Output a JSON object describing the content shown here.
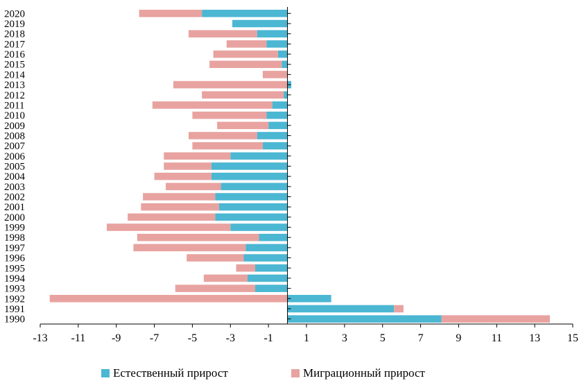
{
  "chart_data": {
    "type": "bar",
    "orientation": "horizontal",
    "stacked": true,
    "categories": [
      "1990",
      "1991",
      "1992",
      "1993",
      "1994",
      "1995",
      "1996",
      "1997",
      "1998",
      "1999",
      "2000",
      "2001",
      "2002",
      "2003",
      "2004",
      "2005",
      "2006",
      "2007",
      "2008",
      "2009",
      "2010",
      "2011",
      "2012",
      "2013",
      "2014",
      "2015",
      "2016",
      "2017",
      "2018",
      "2019",
      "2020"
    ],
    "series": [
      {
        "name": "Естественный прирост",
        "color": "#4bb7d3",
        "values": [
          8.1,
          5.6,
          2.3,
          -1.7,
          -2.1,
          -1.7,
          -2.3,
          -2.2,
          -1.5,
          -3.0,
          -3.8,
          -3.6,
          -3.8,
          -3.5,
          -4.0,
          -4.0,
          -3.0,
          -1.3,
          -1.6,
          -1.0,
          -1.1,
          -0.8,
          -0.2,
          0.2,
          0.0,
          -0.3,
          -0.5,
          -1.1,
          -1.6,
          -2.9,
          -4.5
        ]
      },
      {
        "name": "Миграционный прирост",
        "color": "#e8a3a0",
        "values": [
          5.7,
          0.5,
          -12.5,
          -4.2,
          -2.3,
          -1.0,
          -3.0,
          -5.9,
          -6.4,
          -6.5,
          -4.6,
          -4.1,
          -3.8,
          -2.9,
          -3.0,
          -2.5,
          -3.5,
          -3.7,
          -3.6,
          -2.7,
          -3.9,
          -6.3,
          -4.3,
          -6.0,
          -1.3,
          -3.8,
          -3.4,
          -2.1,
          -3.6,
          0.0,
          -3.3
        ]
      }
    ],
    "xlim": [
      -13,
      15
    ],
    "xticks": [
      -13,
      -11,
      -9,
      -7,
      -5,
      -3,
      -1,
      1,
      3,
      5,
      7,
      9,
      11,
      13,
      15
    ],
    "title": "",
    "xlabel": "",
    "ylabel": "",
    "legend_position": "bottom"
  }
}
